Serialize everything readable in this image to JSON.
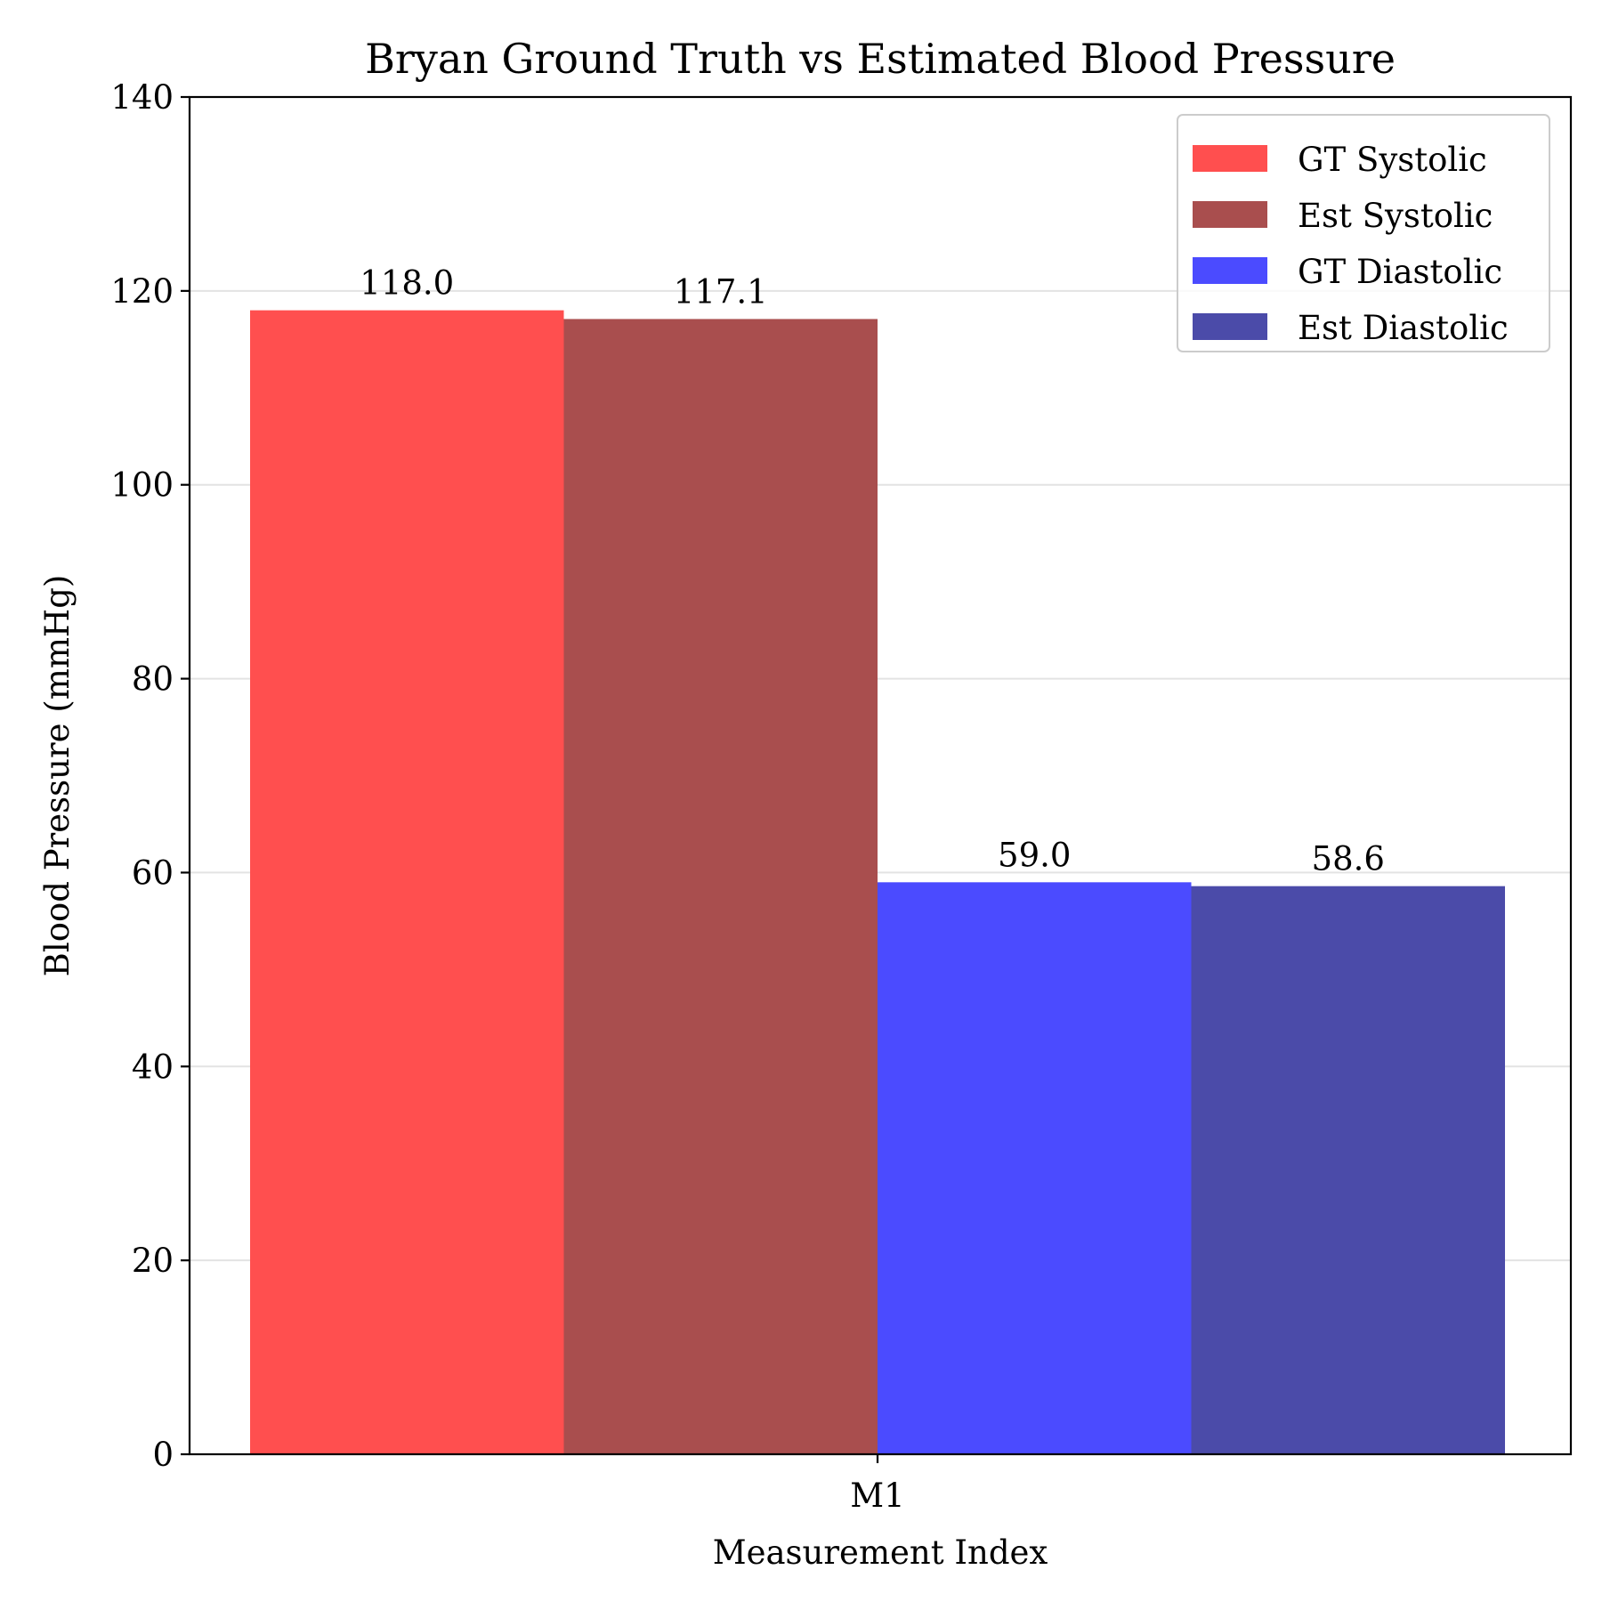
{
  "chart_data": {
    "type": "bar",
    "title": "Bryan Ground Truth vs Estimated Blood Pressure",
    "xlabel": "Measurement Index",
    "ylabel": "Blood Pressure (mmHg)",
    "categories": [
      "M1"
    ],
    "ylim": [
      0,
      140
    ],
    "yticks": [
      0,
      20,
      40,
      60,
      80,
      100,
      120,
      140
    ],
    "grid": "horizontal",
    "legend_position": "top-right",
    "series": [
      {
        "name": "GT Systolic",
        "values": [
          118.0
        ],
        "label": "118.0",
        "color": "#ff4f4f"
      },
      {
        "name": "Est Systolic",
        "values": [
          117.1
        ],
        "label": "117.1",
        "color": "#a94e4e"
      },
      {
        "name": "GT Diastolic",
        "values": [
          59.0
        ],
        "label": "59.0",
        "color": "#4b4bff"
      },
      {
        "name": "Est Diastolic",
        "values": [
          58.6
        ],
        "label": "58.6",
        "color": "#4b4ba9"
      }
    ]
  }
}
